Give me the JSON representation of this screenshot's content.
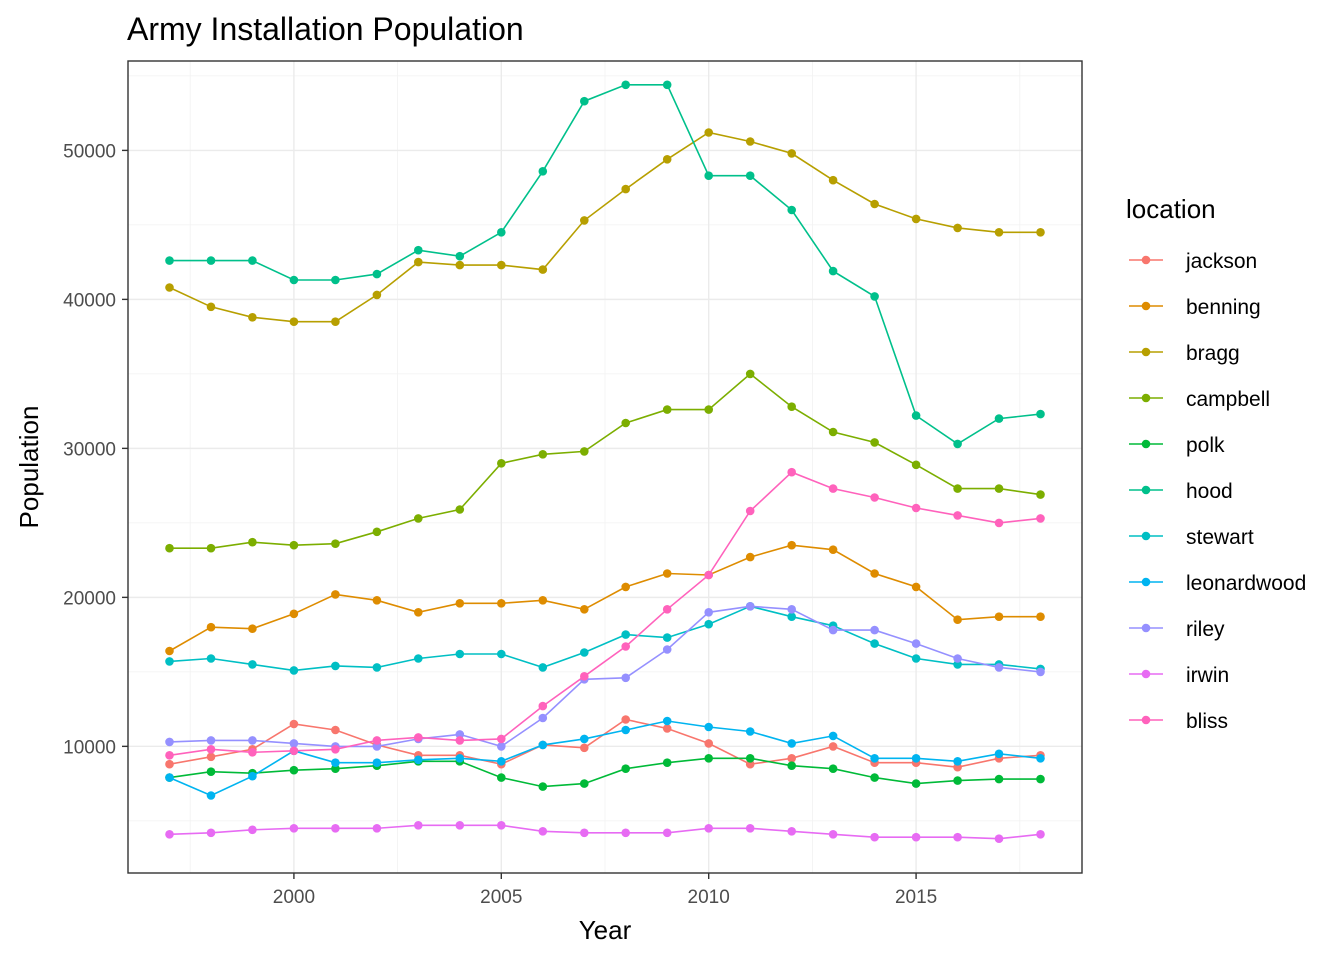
{
  "chart_data": {
    "type": "line",
    "title": "Army Installation Population",
    "xlabel": "Year",
    "ylabel": "Population",
    "xlim": [
      1996,
      2019
    ],
    "ylim": [
      1500,
      56000
    ],
    "x_ticks": [
      2000,
      2005,
      2010,
      2015
    ],
    "y_ticks": [
      10000,
      20000,
      30000,
      40000,
      50000
    ],
    "grid": true,
    "legend_title": "location",
    "legend_position": "right",
    "x": [
      1997,
      1998,
      1999,
      2000,
      2001,
      2002,
      2003,
      2004,
      2005,
      2006,
      2007,
      2008,
      2009,
      2010,
      2011,
      2012,
      2013,
      2014,
      2015,
      2016,
      2017,
      2018
    ],
    "series": [
      {
        "name": "jackson",
        "color": "#F8766D",
        "values": [
          8800,
          9300,
          9800,
          11500,
          11100,
          10100,
          9400,
          9400,
          8800,
          10100,
          9900,
          11800,
          11200,
          10200,
          8800,
          9200,
          10000,
          8900,
          8900,
          8600,
          9200,
          9400
        ]
      },
      {
        "name": "benning",
        "color": "#DE8C00",
        "values": [
          16400,
          18000,
          17900,
          18900,
          20200,
          19800,
          19000,
          19600,
          19600,
          19800,
          19200,
          20700,
          21600,
          21500,
          22700,
          23500,
          23200,
          21600,
          20700,
          18500,
          18700,
          18700
        ]
      },
      {
        "name": "bragg",
        "color": "#B79F00",
        "values": [
          40800,
          39500,
          38800,
          38500,
          38500,
          40300,
          42500,
          42300,
          42300,
          42000,
          45300,
          47400,
          49400,
          51200,
          50600,
          49800,
          48000,
          46400,
          45400,
          44800,
          44500,
          44500
        ]
      },
      {
        "name": "campbell",
        "color": "#7CAE00",
        "values": [
          23300,
          23300,
          23700,
          23500,
          23600,
          24400,
          25300,
          25900,
          29000,
          29600,
          29800,
          31700,
          32600,
          32600,
          35000,
          32800,
          31100,
          30400,
          28900,
          27300,
          27300,
          26900
        ]
      },
      {
        "name": "polk",
        "color": "#00BA38",
        "values": [
          7900,
          8300,
          8200,
          8400,
          8500,
          8700,
          9000,
          9000,
          7900,
          7300,
          7500,
          8500,
          8900,
          9200,
          9200,
          8700,
          8500,
          7900,
          7500,
          7700,
          7800,
          7800
        ]
      },
      {
        "name": "hood",
        "color": "#00C08B",
        "values": [
          42600,
          42600,
          42600,
          41300,
          41300,
          41700,
          43300,
          42900,
          44500,
          48600,
          53300,
          54400,
          54400,
          48300,
          48300,
          46000,
          41900,
          40200,
          32200,
          30300,
          32000,
          32300
        ]
      },
      {
        "name": "stewart",
        "color": "#00BFC4",
        "values": [
          15700,
          15900,
          15500,
          15100,
          15400,
          15300,
          15900,
          16200,
          16200,
          15300,
          16300,
          17500,
          17300,
          18200,
          19400,
          18700,
          18100,
          16900,
          15900,
          15500,
          15500,
          15200
        ]
      },
      {
        "name": "leonardwood",
        "color": "#00B4F0",
        "values": [
          7900,
          6700,
          8000,
          9700,
          8900,
          8900,
          9100,
          9200,
          9000,
          10100,
          10500,
          11100,
          11700,
          11300,
          11000,
          10200,
          10700,
          9200,
          9200,
          9000,
          9500,
          9200
        ]
      },
      {
        "name": "riley",
        "color": "#9590FF",
        "values": [
          10300,
          10400,
          10400,
          10200,
          10000,
          10000,
          10500,
          10800,
          10000,
          11900,
          14500,
          14600,
          16500,
          19000,
          19400,
          19200,
          17800,
          17800,
          16900,
          15900,
          15300,
          15000
        ]
      },
      {
        "name": "irwin",
        "color": "#E76BF3",
        "values": [
          4100,
          4200,
          4400,
          4500,
          4500,
          4500,
          4700,
          4700,
          4700,
          4300,
          4200,
          4200,
          4200,
          4500,
          4500,
          4300,
          4100,
          3900,
          3900,
          3900,
          3800,
          4100
        ]
      },
      {
        "name": "bliss",
        "color": "#FF62BC",
        "values": [
          9400,
          9800,
          9600,
          9700,
          9800,
          10400,
          10600,
          10400,
          10500,
          12700,
          14700,
          16700,
          19200,
          21500,
          25800,
          28400,
          27300,
          26700,
          26000,
          25500,
          25000,
          25300
        ]
      }
    ]
  }
}
